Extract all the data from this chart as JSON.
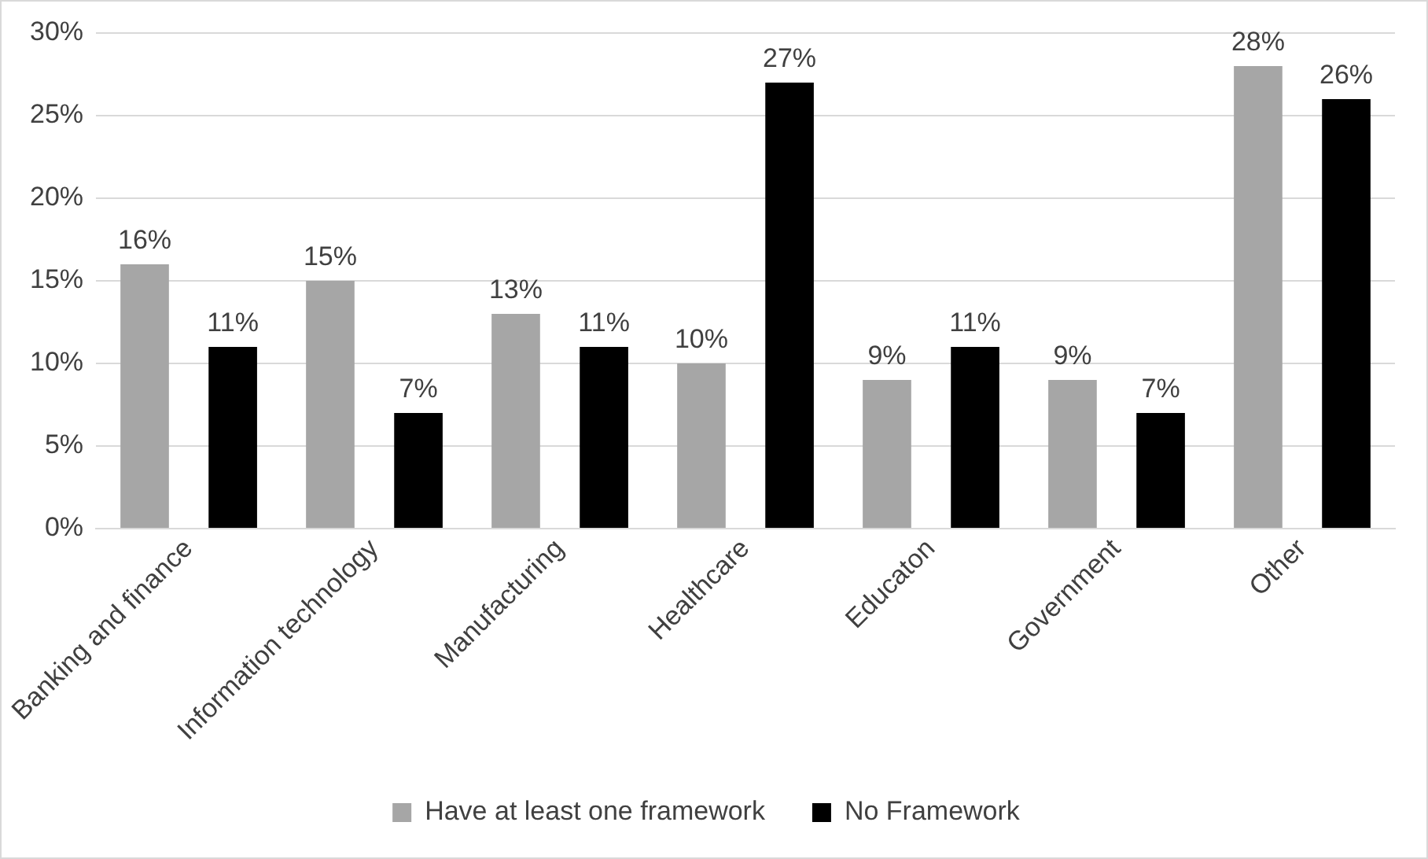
{
  "chart_data": {
    "type": "bar",
    "categories": [
      "Banking and finance",
      "Information technology",
      "Manufacturing",
      "Healthcare",
      "Educaton",
      "Government",
      "Other"
    ],
    "series": [
      {
        "name": "Have at least one framework",
        "color": "#a6a6a6",
        "values": [
          16,
          15,
          13,
          10,
          9,
          9,
          28
        ],
        "value_labels": [
          "16%",
          "15%",
          "13%",
          "10%",
          "9%",
          "9%",
          "28%"
        ]
      },
      {
        "name": "No Framework",
        "color": "#000000",
        "values": [
          11,
          7,
          11,
          27,
          11,
          7,
          26
        ],
        "value_labels": [
          "11%",
          "7%",
          "11%",
          "27%",
          "11%",
          "7%",
          "26%"
        ]
      }
    ],
    "ylim": [
      0,
      30
    ],
    "yticks": [
      {
        "value": 0,
        "label": "0%"
      },
      {
        "value": 5,
        "label": "5%"
      },
      {
        "value": 10,
        "label": "10%"
      },
      {
        "value": 15,
        "label": "15%"
      },
      {
        "value": 20,
        "label": "20%"
      },
      {
        "value": 25,
        "label": "25%"
      },
      {
        "value": 30,
        "label": "30%"
      }
    ],
    "grid": "y",
    "legend": "bottom"
  }
}
